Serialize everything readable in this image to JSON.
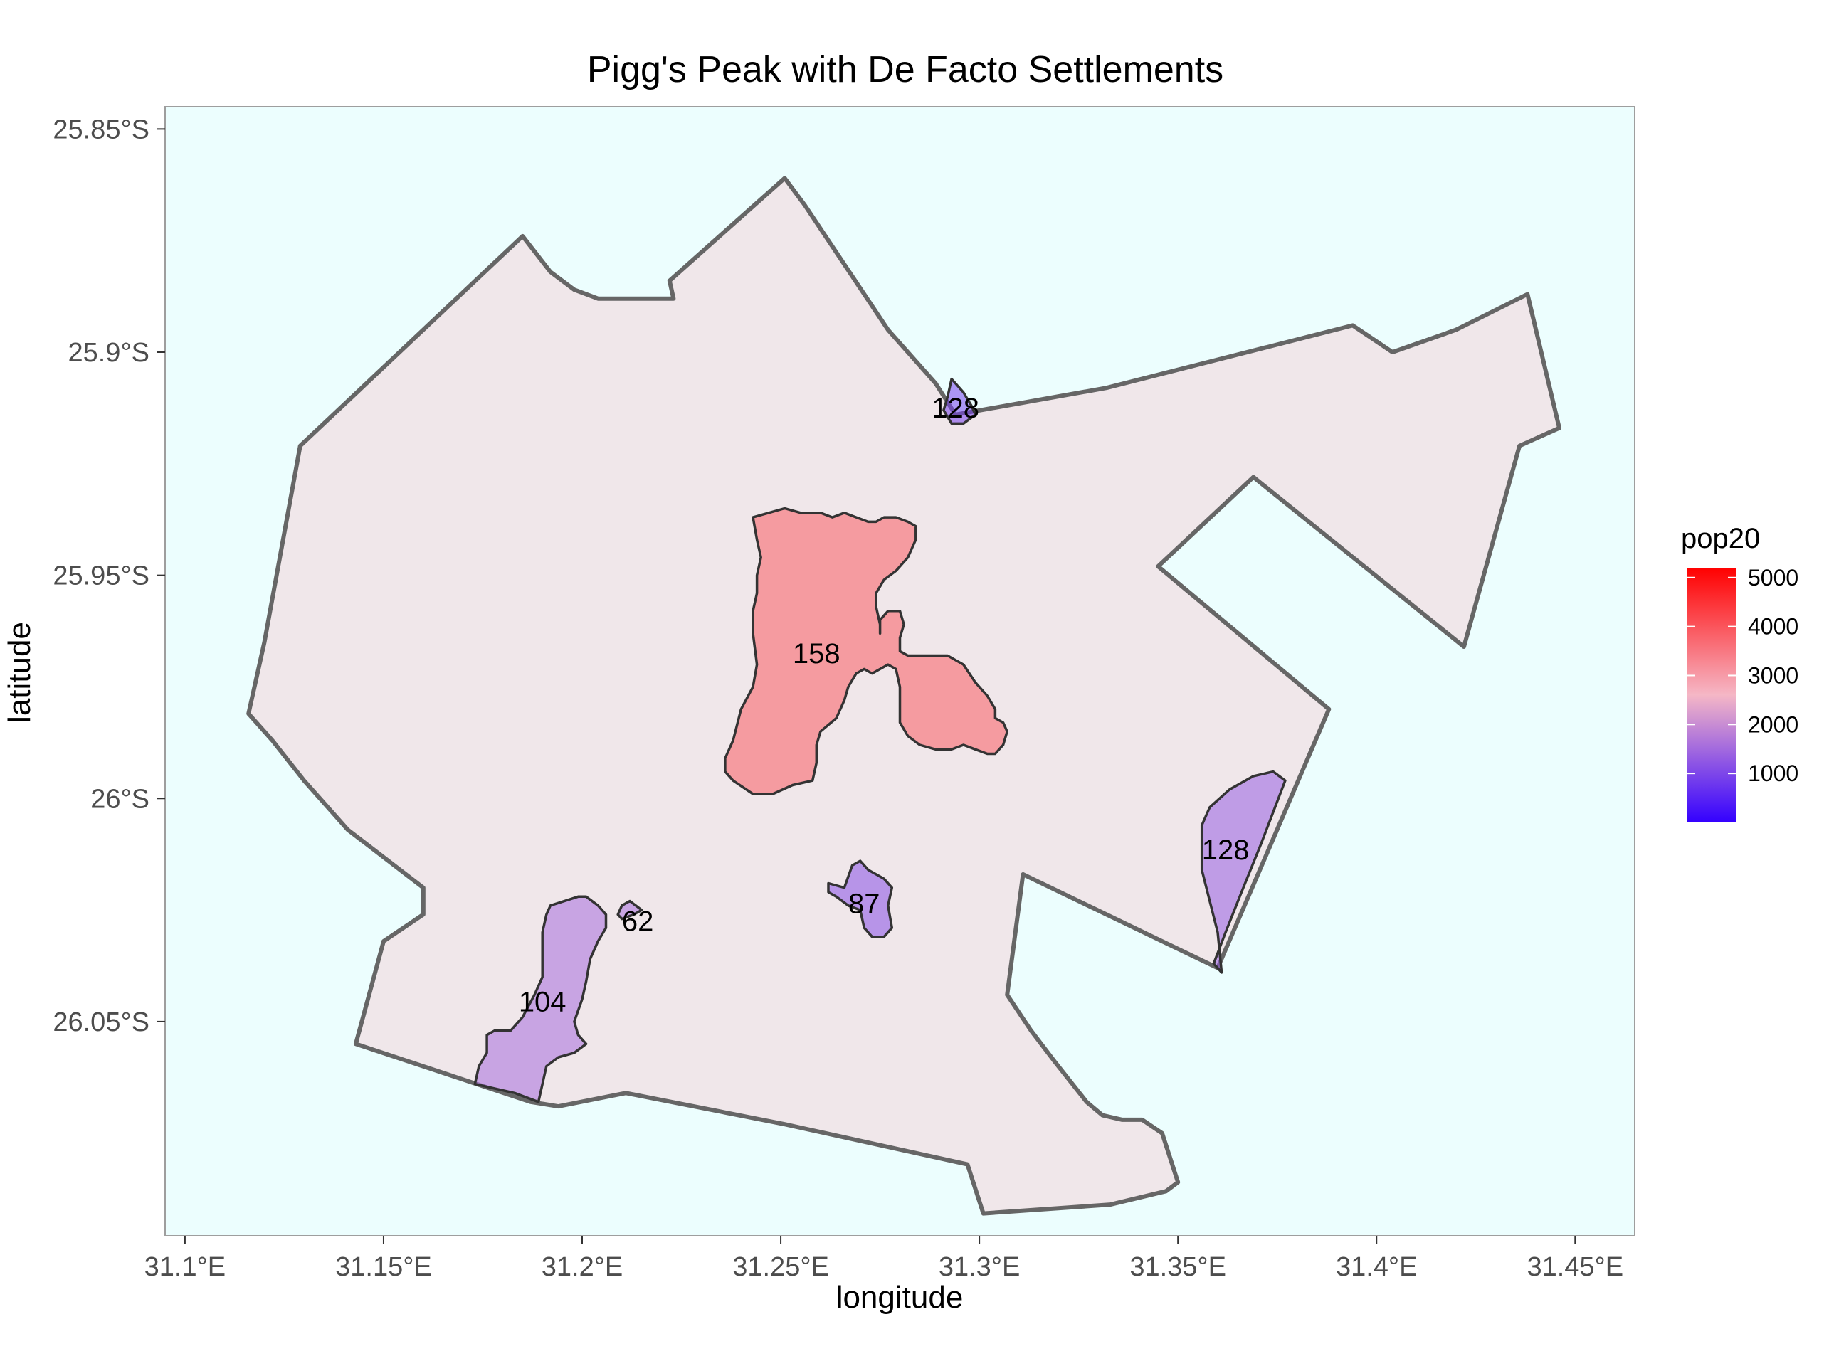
{
  "chart_data": {
    "type": "map",
    "title": "Pigg's Peak with De Facto Settlements",
    "xlabel": "longitude",
    "ylabel": "latitude",
    "xlim": [
      31.095,
      31.465
    ],
    "ylim": [
      -26.098,
      -25.845
    ],
    "x_ticks": [
      {
        "value": 31.1,
        "label": "31.1°E"
      },
      {
        "value": 31.15,
        "label": "31.15°E"
      },
      {
        "value": 31.2,
        "label": "31.2°E"
      },
      {
        "value": 31.25,
        "label": "31.25°E"
      },
      {
        "value": 31.3,
        "label": "31.3°E"
      },
      {
        "value": 31.35,
        "label": "31.35°E"
      },
      {
        "value": 31.4,
        "label": "31.4°E"
      },
      {
        "value": 31.45,
        "label": "31.45°E"
      }
    ],
    "y_ticks": [
      {
        "value": -25.85,
        "label": "25.85°S"
      },
      {
        "value": -25.9,
        "label": "25.9°S"
      },
      {
        "value": -25.95,
        "label": "25.95°S"
      },
      {
        "value": -26.0,
        "label": "26°S"
      },
      {
        "value": -26.05,
        "label": "26.05°S"
      }
    ],
    "background_color": "#ecfefe",
    "boundary_fill": "#f0e7ea",
    "boundary_stroke": "#666666",
    "legend": {
      "title": "pop20",
      "position": "right",
      "min": 0,
      "max": 5200,
      "colors": [
        "#3300ff",
        "#f5b7c6",
        "#ff0000"
      ],
      "ticks": [
        {
          "value": 1000,
          "label": "1000"
        },
        {
          "value": 2000,
          "label": "2000"
        },
        {
          "value": 3000,
          "label": "3000"
        },
        {
          "value": 4000,
          "label": "4000"
        },
        {
          "value": 5000,
          "label": "5000"
        }
      ]
    },
    "boundary": [
      [
        31.251,
        -25.861
      ],
      [
        31.256,
        -25.867
      ],
      [
        31.277,
        -25.895
      ],
      [
        31.289,
        -25.907
      ],
      [
        31.294,
        -25.914
      ],
      [
        31.332,
        -25.908
      ],
      [
        31.394,
        -25.894
      ],
      [
        31.404,
        -25.9
      ],
      [
        31.42,
        -25.895
      ],
      [
        31.438,
        -25.887
      ],
      [
        31.446,
        -25.917
      ],
      [
        31.436,
        -25.921
      ],
      [
        31.422,
        -25.966
      ],
      [
        31.369,
        -25.928
      ],
      [
        31.345,
        -25.948
      ],
      [
        31.388,
        -25.98
      ],
      [
        31.36,
        -26.038
      ],
      [
        31.311,
        -26.017
      ],
      [
        31.307,
        -26.044
      ],
      [
        31.313,
        -26.052
      ],
      [
        31.319,
        -26.059
      ],
      [
        31.327,
        -26.068
      ],
      [
        31.331,
        -26.071
      ],
      [
        31.336,
        -26.072
      ],
      [
        31.341,
        -26.072
      ],
      [
        31.346,
        -26.075
      ],
      [
        31.35,
        -26.086
      ],
      [
        31.347,
        -26.088
      ],
      [
        31.333,
        -26.091
      ],
      [
        31.301,
        -26.093
      ],
      [
        31.297,
        -26.082
      ],
      [
        31.251,
        -26.073
      ],
      [
        31.211,
        -26.066
      ],
      [
        31.194,
        -26.069
      ],
      [
        31.187,
        -26.068
      ],
      [
        31.143,
        -26.055
      ],
      [
        31.15,
        -26.032
      ],
      [
        31.16,
        -26.026
      ],
      [
        31.16,
        -26.02
      ],
      [
        31.141,
        -26.007
      ],
      [
        31.13,
        -25.996
      ],
      [
        31.122,
        -25.987
      ],
      [
        31.116,
        -25.981
      ],
      [
        31.12,
        -25.965
      ],
      [
        31.129,
        -25.921
      ],
      [
        31.185,
        -25.874
      ],
      [
        31.192,
        -25.882
      ],
      [
        31.198,
        -25.886
      ],
      [
        31.204,
        -25.888
      ],
      [
        31.223,
        -25.888
      ],
      [
        31.222,
        -25.884
      ],
      [
        31.251,
        -25.861
      ]
    ],
    "settlements": [
      {
        "label": "158",
        "pop20": 3900,
        "label_pos": [
          31.259,
          -25.968
        ],
        "polygon": [
          [
            31.243,
            -25.937
          ],
          [
            31.251,
            -25.935
          ],
          [
            31.255,
            -25.936
          ],
          [
            31.26,
            -25.936
          ],
          [
            31.263,
            -25.937
          ],
          [
            31.266,
            -25.936
          ],
          [
            31.269,
            -25.937
          ],
          [
            31.272,
            -25.938
          ],
          [
            31.274,
            -25.938
          ],
          [
            31.276,
            -25.937
          ],
          [
            31.279,
            -25.937
          ],
          [
            31.282,
            -25.938
          ],
          [
            31.284,
            -25.939
          ],
          [
            31.284,
            -25.942
          ],
          [
            31.282,
            -25.946
          ],
          [
            31.279,
            -25.949
          ],
          [
            31.276,
            -25.951
          ],
          [
            31.274,
            -25.954
          ],
          [
            31.274,
            -25.957
          ],
          [
            31.275,
            -25.961
          ],
          [
            31.275,
            -25.963
          ],
          [
            31.275,
            -25.96
          ],
          [
            31.277,
            -25.958
          ],
          [
            31.28,
            -25.958
          ],
          [
            31.281,
            -25.961
          ],
          [
            31.28,
            -25.964
          ],
          [
            31.28,
            -25.967
          ],
          [
            31.282,
            -25.968
          ],
          [
            31.287,
            -25.968
          ],
          [
            31.292,
            -25.968
          ],
          [
            31.296,
            -25.97
          ],
          [
            31.299,
            -25.974
          ],
          [
            31.302,
            -25.977
          ],
          [
            31.304,
            -25.98
          ],
          [
            31.304,
            -25.982
          ],
          [
            31.306,
            -25.983
          ],
          [
            31.307,
            -25.985
          ],
          [
            31.306,
            -25.988
          ],
          [
            31.304,
            -25.99
          ],
          [
            31.302,
            -25.99
          ],
          [
            31.299,
            -25.989
          ],
          [
            31.296,
            -25.988
          ],
          [
            31.293,
            -25.989
          ],
          [
            31.289,
            -25.989
          ],
          [
            31.285,
            -25.988
          ],
          [
            31.282,
            -25.986
          ],
          [
            31.28,
            -25.983
          ],
          [
            31.28,
            -25.979
          ],
          [
            31.28,
            -25.975
          ],
          [
            31.279,
            -25.971
          ],
          [
            31.277,
            -25.97
          ],
          [
            31.275,
            -25.971
          ],
          [
            31.273,
            -25.972
          ],
          [
            31.271,
            -25.971
          ],
          [
            31.269,
            -25.972
          ],
          [
            31.267,
            -25.975
          ],
          [
            31.266,
            -25.978
          ],
          [
            31.264,
            -25.982
          ],
          [
            31.26,
            -25.985
          ],
          [
            31.259,
            -25.988
          ],
          [
            31.259,
            -25.992
          ],
          [
            31.258,
            -25.996
          ],
          [
            31.253,
            -25.997
          ],
          [
            31.248,
            -25.999
          ],
          [
            31.243,
            -25.999
          ],
          [
            31.238,
            -25.996
          ],
          [
            31.236,
            -25.994
          ],
          [
            31.236,
            -25.991
          ],
          [
            31.238,
            -25.987
          ],
          [
            31.24,
            -25.98
          ],
          [
            31.243,
            -25.975
          ],
          [
            31.244,
            -25.97
          ],
          [
            31.243,
            -25.963
          ],
          [
            31.243,
            -25.958
          ],
          [
            31.244,
            -25.954
          ],
          [
            31.244,
            -25.95
          ],
          [
            31.245,
            -25.946
          ],
          [
            31.244,
            -25.942
          ],
          [
            31.243,
            -25.937
          ]
        ]
      },
      {
        "label": "128",
        "pop20": 900,
        "label_pos": [
          31.294,
          -25.913
        ],
        "polygon": [
          [
            31.293,
            -25.906
          ],
          [
            31.296,
            -25.909
          ],
          [
            31.298,
            -25.912
          ],
          [
            31.299,
            -25.914
          ],
          [
            31.296,
            -25.916
          ],
          [
            31.293,
            -25.916
          ],
          [
            31.291,
            -25.913
          ],
          [
            31.292,
            -25.91
          ],
          [
            31.293,
            -25.906
          ]
        ]
      },
      {
        "label": "128",
        "pop20": 1350,
        "label_pos": [
          31.362,
          -26.012
        ],
        "polygon": [
          [
            31.377,
            -25.996
          ],
          [
            31.371,
            -26.01
          ],
          [
            31.366,
            -26.021
          ],
          [
            31.362,
            -26.03
          ],
          [
            31.359,
            -26.037
          ],
          [
            31.361,
            -26.039
          ],
          [
            31.36,
            -26.03
          ],
          [
            31.356,
            -26.016
          ],
          [
            31.356,
            -26.006
          ],
          [
            31.358,
            -26.002
          ],
          [
            31.363,
            -25.998
          ],
          [
            31.369,
            -25.995
          ],
          [
            31.374,
            -25.994
          ],
          [
            31.377,
            -25.996
          ]
        ]
      },
      {
        "label": "87",
        "pop20": 1150,
        "label_pos": [
          31.271,
          -26.024
        ],
        "polygon": [
          [
            31.262,
            -26.019
          ],
          [
            31.266,
            -26.02
          ],
          [
            31.268,
            -26.015
          ],
          [
            31.27,
            -26.014
          ],
          [
            31.272,
            -26.016
          ],
          [
            31.276,
            -26.018
          ],
          [
            31.278,
            -26.02
          ],
          [
            31.277,
            -26.024
          ],
          [
            31.278,
            -26.029
          ],
          [
            31.276,
            -26.031
          ],
          [
            31.273,
            -26.031
          ],
          [
            31.271,
            -26.029
          ],
          [
            31.27,
            -26.025
          ],
          [
            31.267,
            -26.024
          ],
          [
            31.264,
            -26.022
          ],
          [
            31.262,
            -26.021
          ],
          [
            31.262,
            -26.019
          ]
        ]
      },
      {
        "label": "104",
        "pop20": 1550,
        "label_pos": [
          31.19,
          -26.046
        ],
        "polygon": [
          [
            31.192,
            -26.024
          ],
          [
            31.199,
            -26.022
          ],
          [
            31.201,
            -26.022
          ],
          [
            31.204,
            -26.024
          ],
          [
            31.206,
            -26.026
          ],
          [
            31.206,
            -26.029
          ],
          [
            31.204,
            -26.032
          ],
          [
            31.202,
            -26.036
          ],
          [
            31.201,
            -26.041
          ],
          [
            31.2,
            -26.045
          ],
          [
            31.198,
            -26.05
          ],
          [
            31.199,
            -26.053
          ],
          [
            31.201,
            -26.055
          ],
          [
            31.198,
            -26.057
          ],
          [
            31.194,
            -26.058
          ],
          [
            31.191,
            -26.06
          ],
          [
            31.19,
            -26.064
          ],
          [
            31.189,
            -26.068
          ],
          [
            31.183,
            -26.066
          ],
          [
            31.173,
            -26.064
          ],
          [
            31.174,
            -26.06
          ],
          [
            31.176,
            -26.057
          ],
          [
            31.176,
            -26.053
          ],
          [
            31.178,
            -26.052
          ],
          [
            31.182,
            -26.052
          ],
          [
            31.185,
            -26.049
          ],
          [
            31.188,
            -26.044
          ],
          [
            31.19,
            -26.04
          ],
          [
            31.19,
            -26.035
          ],
          [
            31.19,
            -26.03
          ],
          [
            31.191,
            -26.026
          ],
          [
            31.192,
            -26.024
          ]
        ]
      },
      {
        "label": "62",
        "pop20": 1550,
        "label_pos": [
          31.214,
          -26.028
        ],
        "polygon": [
          [
            31.21,
            -26.024
          ],
          [
            31.212,
            -26.023
          ],
          [
            31.215,
            -26.025
          ],
          [
            31.213,
            -26.026
          ],
          [
            31.21,
            -26.027
          ],
          [
            31.209,
            -26.026
          ],
          [
            31.21,
            -26.024
          ]
        ]
      }
    ]
  }
}
